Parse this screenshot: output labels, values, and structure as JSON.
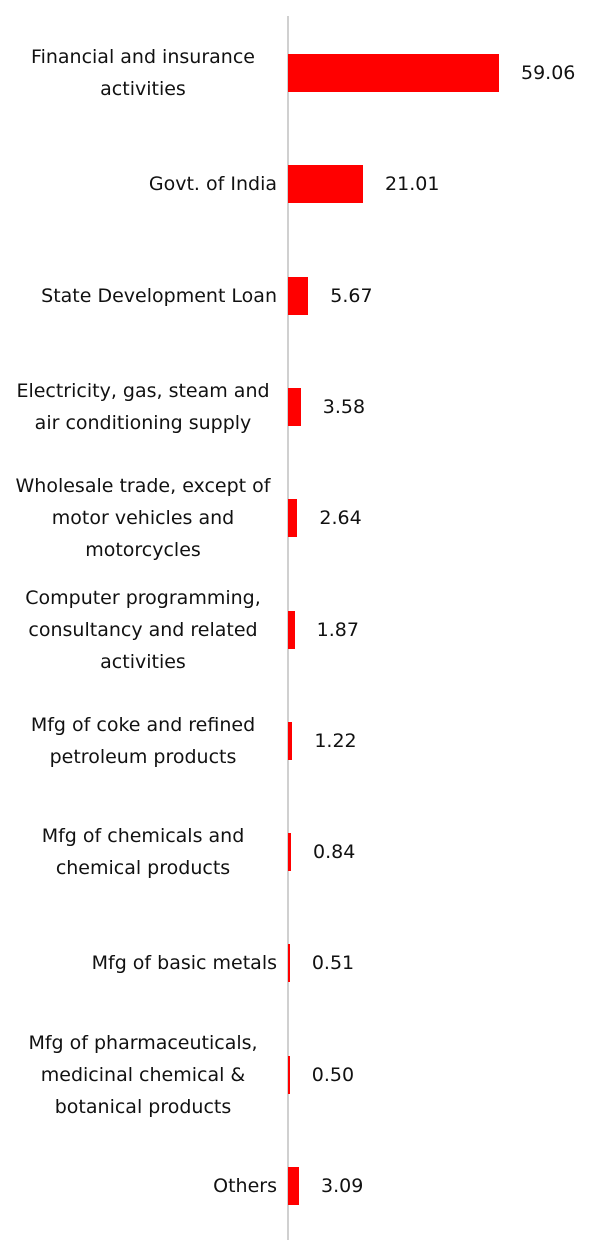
{
  "chart_data": {
    "type": "bar",
    "orientation": "horizontal",
    "categories": [
      "Financial and insurance activities",
      "Govt. of India",
      "State Development Loan",
      "Electricity, gas, steam and air conditioning supply",
      "Wholesale trade, except of motor vehicles and motorcycles",
      "Computer programming, consultancy and related activities",
      "Mfg of coke and refined petroleum products",
      "Mfg of chemicals and chemical products",
      "Mfg of basic metals",
      "Mfg of pharmaceuticals, medicinal chemical & botanical products",
      "Others"
    ],
    "values": [
      59.06,
      21.01,
      5.67,
      3.58,
      2.64,
      1.87,
      1.22,
      0.84,
      0.51,
      0.5,
      3.09
    ],
    "value_labels": [
      "59.06",
      "21.01",
      "5.67",
      "3.58",
      "2.64",
      "1.87",
      "1.22",
      "0.84",
      "0.51",
      "0.50",
      "3.09"
    ],
    "color": "#ff0000"
  }
}
